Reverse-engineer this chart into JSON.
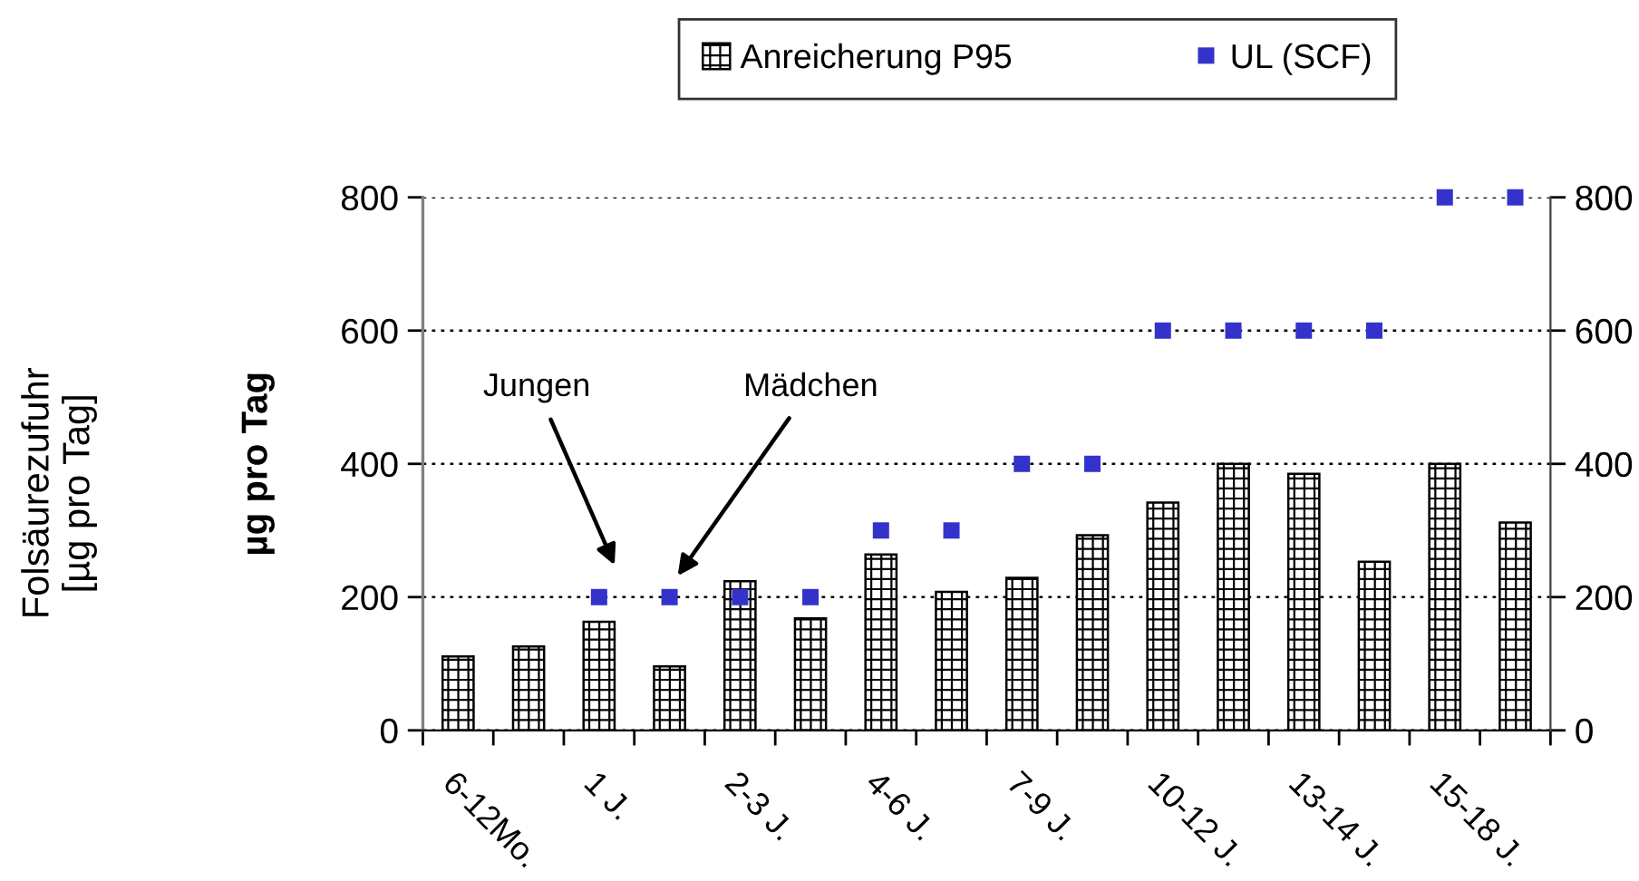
{
  "chart_data": {
    "type": "bar",
    "categories": [
      "6-12Mo.",
      null,
      "1 J.",
      null,
      "2-3 J.",
      null,
      "4-6 J.",
      null,
      "7-9 J.",
      null,
      "10-12 J.",
      null,
      "13-14 J.",
      null,
      "15-18 J.",
      null
    ],
    "series": [
      {
        "name": "Anreicherung P95",
        "color": "#000000",
        "values": [
          111,
          126,
          163,
          96,
          224,
          168,
          264,
          208,
          229,
          293,
          342,
          400,
          385,
          253,
          400,
          312
        ]
      },
      {
        "name": "UL (SCF)",
        "type": "scatter",
        "color": "#3333cc",
        "marker": "square",
        "values": [
          null,
          null,
          200,
          200,
          200,
          200,
          300,
          300,
          400,
          400,
          600,
          600,
          600,
          600,
          800,
          800
        ]
      }
    ],
    "ylabel": "µg pro Tag",
    "ylim": [
      0,
      800
    ],
    "yticks": [
      0,
      200,
      400,
      600,
      800
    ],
    "y2lim": [
      0,
      800
    ],
    "y2ticks": [
      0,
      200,
      400,
      600,
      800
    ],
    "grid": "y",
    "legend": "top",
    "annotations": [
      "Folsäurezufuhr\n[µg pro Tag]",
      "Jungen",
      "Mädchen"
    ]
  }
}
